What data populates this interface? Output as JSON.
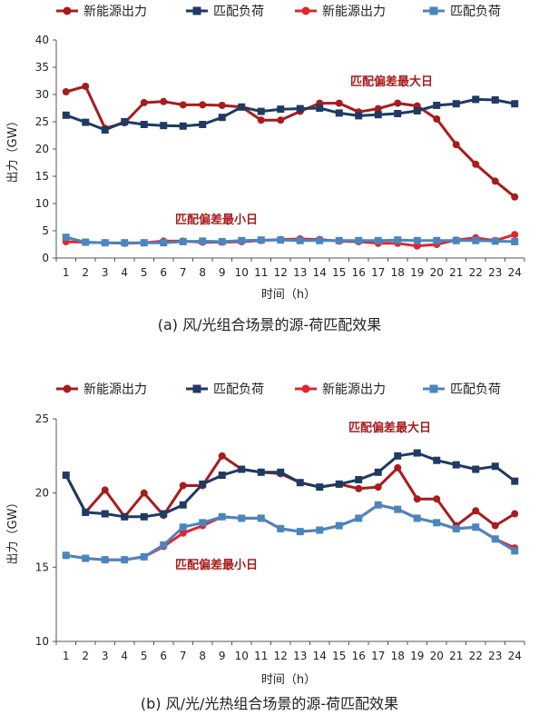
{
  "chart_data": [
    {
      "type": "line",
      "title": "(a)  风/光组合场景的源-荷匹配效果",
      "xlabel": "时间（h）",
      "ylabel": "出力（GW）",
      "x": [
        1,
        2,
        3,
        4,
        5,
        6,
        7,
        8,
        9,
        10,
        11,
        12,
        13,
        14,
        15,
        16,
        17,
        18,
        19,
        20,
        21,
        22,
        23,
        24
      ],
      "ylim": [
        0,
        40
      ],
      "yticks": [
        0,
        5,
        10,
        15,
        20,
        25,
        30,
        35,
        40
      ],
      "grid": false,
      "legend_position": "top",
      "annotations": [
        "匹配偏差最大日",
        "匹配偏差最小日"
      ],
      "series": [
        {
          "name": "新能源出力",
          "color": "#a81c1c",
          "marker": "circle",
          "values": [
            30.5,
            31.5,
            23.8,
            24.8,
            28.5,
            28.7,
            28.1,
            28.1,
            28.0,
            27.7,
            25.3,
            25.3,
            26.9,
            28.4,
            28.4,
            26.8,
            27.4,
            28.4,
            27.9,
            25.5,
            20.8,
            17.2,
            14.1,
            11.2
          ]
        },
        {
          "name": "匹配负荷",
          "color": "#1f3a63",
          "marker": "square",
          "values": [
            26.2,
            24.9,
            23.5,
            25.0,
            24.5,
            24.3,
            24.2,
            24.5,
            25.8,
            27.7,
            26.9,
            27.3,
            27.4,
            27.5,
            26.6,
            26.1,
            26.3,
            26.5,
            27.0,
            28.0,
            28.3,
            29.1,
            29.0,
            28.3
          ]
        },
        {
          "name": "新能源出力",
          "color": "#e0262e",
          "marker": "circle",
          "values": [
            3.0,
            2.9,
            2.8,
            2.7,
            2.8,
            3.1,
            3.1,
            2.9,
            2.9,
            3.0,
            3.2,
            3.4,
            3.5,
            3.4,
            3.1,
            3.0,
            2.7,
            2.7,
            2.2,
            2.5,
            3.3,
            3.7,
            3.2,
            4.3
          ]
        },
        {
          "name": "匹配负荷",
          "color": "#4a86be",
          "marker": "square",
          "values": [
            3.8,
            2.9,
            2.8,
            2.8,
            2.8,
            2.8,
            3.0,
            3.1,
            3.0,
            3.2,
            3.3,
            3.3,
            3.2,
            3.2,
            3.2,
            3.2,
            3.2,
            3.3,
            3.2,
            3.2,
            3.2,
            3.2,
            3.1,
            3.0
          ]
        }
      ]
    },
    {
      "type": "line",
      "title": "(b)  风/光/光热组合场景的源-荷匹配效果",
      "xlabel": "时间（h）",
      "ylabel": "出力（GW）",
      "x": [
        1,
        2,
        3,
        4,
        5,
        6,
        7,
        8,
        9,
        10,
        11,
        12,
        13,
        14,
        15,
        16,
        17,
        18,
        19,
        20,
        21,
        22,
        23,
        24
      ],
      "ylim": [
        10,
        25
      ],
      "yticks": [
        10,
        15,
        20,
        25
      ],
      "grid": false,
      "legend_position": "top",
      "annotations": [
        "匹配偏差最大日",
        "匹配偏差最小日"
      ],
      "series": [
        {
          "name": "新能源出力",
          "color": "#a81c1c",
          "marker": "circle",
          "values": [
            21.2,
            18.7,
            20.2,
            18.4,
            20.0,
            18.5,
            20.5,
            20.5,
            22.5,
            21.6,
            21.4,
            21.3,
            20.7,
            20.4,
            20.6,
            20.3,
            20.4,
            21.7,
            19.6,
            19.6,
            17.8,
            18.8,
            17.8,
            18.6
          ]
        },
        {
          "name": "匹配负荷",
          "color": "#1f3a63",
          "marker": "square",
          "values": [
            21.2,
            18.7,
            18.6,
            18.4,
            18.4,
            18.6,
            19.2,
            20.6,
            21.2,
            21.6,
            21.4,
            21.4,
            20.7,
            20.4,
            20.6,
            20.9,
            21.4,
            22.5,
            22.7,
            22.2,
            21.9,
            21.6,
            21.8,
            20.8
          ]
        },
        {
          "name": "新能源出力",
          "color": "#e0262e",
          "marker": "circle",
          "values": [
            15.8,
            15.6,
            15.5,
            15.5,
            15.7,
            16.4,
            17.3,
            17.8,
            18.4,
            18.3,
            18.3,
            17.6,
            17.4,
            17.5,
            17.8,
            18.3,
            19.2,
            18.9,
            18.3,
            18.0,
            17.6,
            17.7,
            16.9,
            16.3
          ]
        },
        {
          "name": "匹配负荷",
          "color": "#4a86be",
          "marker": "square",
          "values": [
            15.8,
            15.6,
            15.5,
            15.5,
            15.7,
            16.5,
            17.7,
            18.0,
            18.4,
            18.3,
            18.3,
            17.6,
            17.4,
            17.5,
            17.8,
            18.3,
            19.2,
            18.9,
            18.3,
            18.0,
            17.6,
            17.7,
            16.9,
            16.1
          ]
        }
      ]
    }
  ]
}
